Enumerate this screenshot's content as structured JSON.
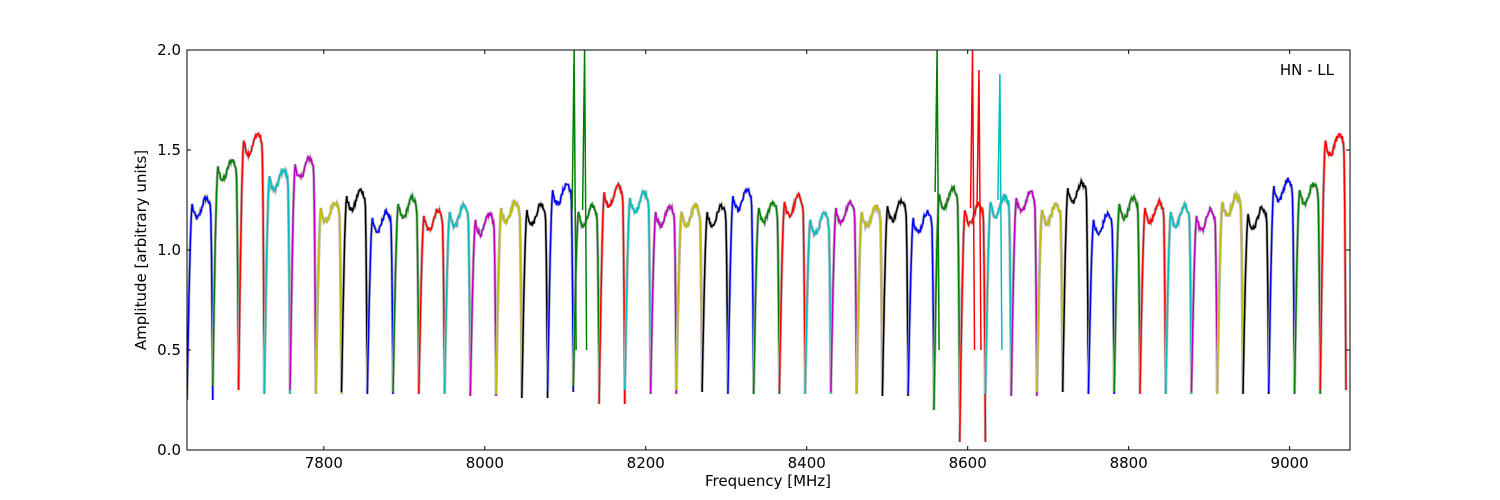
{
  "chart_data": {
    "type": "line",
    "title": "",
    "annotation": "HN - LL",
    "xlabel": "Frequency [MHz]",
    "ylabel": "Amplitude [arbitrary units]",
    "xlim": [
      7630,
      9075
    ],
    "ylim": [
      0.0,
      2.0
    ],
    "xticks": [
      7800,
      8000,
      8200,
      8400,
      8600,
      8800,
      9000
    ],
    "yticks": [
      0.0,
      0.5,
      1.0,
      1.5,
      2.0
    ],
    "xtick_labels": [
      "7800",
      "8000",
      "8200",
      "8400",
      "8600",
      "8800",
      "9000"
    ],
    "ytick_labels": [
      "0.0",
      "0.5",
      "1.0",
      "1.5",
      "2.0"
    ],
    "grid": false,
    "legend": "none",
    "background_trace_color": "#bbbbbb",
    "series_colors": [
      "#0000ff",
      "#007f00",
      "#ff0000",
      "#00bfbf",
      "#bf00bf",
      "#bfbf00",
      "#000000"
    ],
    "channel_width_mhz": 32,
    "channel_start_mhz": 7630,
    "n_channels": 45,
    "channel_levels": [
      1.24,
      1.43,
      1.56,
      1.38,
      1.44,
      1.22,
      1.28,
      1.17,
      1.24,
      1.18,
      1.2,
      1.16,
      1.22,
      1.21,
      1.31,
      1.2,
      1.3,
      1.27,
      1.2,
      1.2,
      1.2,
      1.28,
      1.22,
      1.25,
      1.16,
      1.22,
      1.2,
      1.23,
      1.17,
      1.29,
      1.21,
      1.25,
      1.27,
      1.21,
      1.32,
      1.16,
      1.24,
      1.22,
      1.2,
      1.18,
      1.25,
      1.19,
      1.33,
      1.31,
      1.56
    ],
    "channel_minima": [
      0.25,
      0.32,
      0.3,
      0.28,
      0.3,
      0.28,
      0.29,
      0.28,
      0.29,
      0.28,
      0.28,
      0.27,
      0.28,
      0.26,
      0.29,
      0.32,
      0.23,
      0.3,
      0.28,
      0.3,
      0.29,
      0.28,
      0.28,
      0.3,
      0.28,
      0.29,
      0.28,
      0.27,
      0.28,
      0.2,
      0.04,
      0.28,
      0.27,
      0.29,
      0.29,
      0.28,
      0.29,
      0.28,
      0.28,
      0.29,
      0.28,
      0.28,
      0.29,
      0.28,
      0.3
    ],
    "interference_spikes": [
      {
        "x": 8111,
        "y": 2.0
      },
      {
        "x": 8124,
        "y": 2.0
      },
      {
        "x": 8562,
        "y": 2.0
      },
      {
        "x": 8606,
        "y": 2.0
      },
      {
        "x": 8614,
        "y": 1.9
      },
      {
        "x": 8640,
        "y": 1.88
      }
    ]
  }
}
